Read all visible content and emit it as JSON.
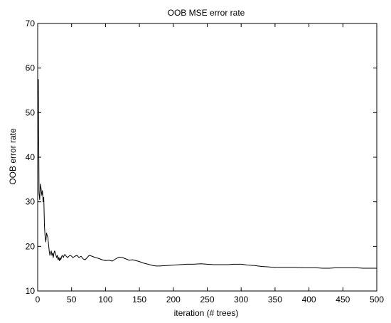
{
  "chart_data": {
    "type": "line",
    "title": "OOB MSE error rate",
    "xlabel": "iteration (# trees)",
    "ylabel": "OOB error rate",
    "xlim": [
      0,
      500
    ],
    "ylim": [
      10,
      70
    ],
    "xticks": [
      0,
      50,
      100,
      150,
      200,
      250,
      300,
      350,
      400,
      450,
      500
    ],
    "yticks": [
      10,
      20,
      30,
      40,
      50,
      60,
      70
    ],
    "xtick_labels": [
      "0",
      "50",
      "100",
      "150",
      "200",
      "250",
      "300",
      "350",
      "400",
      "450",
      "500"
    ],
    "ytick_labels": [
      "10",
      "20",
      "30",
      "40",
      "50",
      "60",
      "70"
    ],
    "grid": false,
    "legend": "none",
    "line_color": "#000000",
    "series": [
      {
        "x": [
          1,
          2,
          3,
          4,
          5,
          6,
          7,
          8,
          9,
          10,
          11,
          12,
          13,
          14,
          15,
          16,
          17,
          18,
          19,
          20,
          21,
          22,
          23,
          24,
          25,
          26,
          27,
          28,
          29,
          30,
          31,
          32,
          33,
          34,
          35,
          36,
          37,
          38,
          39,
          40,
          42,
          44,
          46,
          48,
          50,
          52,
          55,
          58,
          61,
          64,
          67,
          70,
          73,
          76,
          80,
          85,
          90,
          95,
          100,
          105,
          110,
          115,
          120,
          125,
          130,
          135,
          140,
          145,
          150,
          155,
          160,
          165,
          170,
          175,
          180,
          190,
          200,
          210,
          220,
          230,
          240,
          250,
          260,
          270,
          280,
          290,
          300,
          310,
          320,
          330,
          340,
          350,
          360,
          370,
          380,
          390,
          400,
          410,
          420,
          430,
          440,
          450,
          460,
          470,
          480,
          490,
          500
        ],
        "values": [
          57.5,
          32.0,
          30.5,
          34.0,
          33.0,
          31.5,
          32.5,
          30.0,
          31.0,
          24.5,
          22.0,
          21.0,
          23.0,
          22.5,
          22.0,
          20.5,
          19.0,
          18.0,
          18.5,
          19.0,
          18.0,
          18.5,
          17.5,
          18.5,
          19.0,
          18.5,
          18.0,
          17.5,
          18.0,
          17.0,
          17.5,
          16.8,
          17.5,
          17.0,
          17.5,
          18.0,
          17.8,
          17.5,
          18.0,
          18.2,
          17.8,
          17.5,
          17.8,
          18.0,
          17.8,
          17.5,
          17.8,
          18.0,
          17.5,
          17.8,
          17.2,
          17.0,
          17.5,
          18.0,
          17.8,
          17.5,
          17.3,
          17.0,
          16.8,
          16.9,
          16.7,
          17.2,
          17.6,
          17.5,
          17.2,
          16.9,
          17.0,
          16.8,
          16.6,
          16.3,
          16.1,
          15.9,
          15.7,
          15.6,
          15.6,
          15.7,
          15.8,
          15.9,
          16.0,
          16.0,
          16.1,
          16.0,
          15.9,
          15.9,
          15.9,
          16.0,
          16.0,
          15.8,
          15.7,
          15.5,
          15.4,
          15.3,
          15.3,
          15.3,
          15.3,
          15.2,
          15.2,
          15.2,
          15.1,
          15.1,
          15.2,
          15.2,
          15.2,
          15.2,
          15.1,
          15.1,
          15.1
        ]
      }
    ]
  }
}
